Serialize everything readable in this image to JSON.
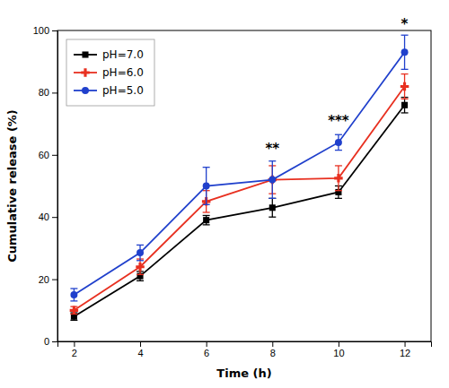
{
  "chart_data": {
    "type": "line",
    "x": [
      2,
      4,
      6,
      8,
      10,
      12
    ],
    "series": [
      {
        "name": "pH=7.0",
        "color": "#000000",
        "marker": "square",
        "values": [
          8.0,
          21.0,
          39.0,
          43.0,
          48.0,
          76.0
        ],
        "errors": [
          1.2,
          1.5,
          1.5,
          3.0,
          2.0,
          2.5
        ]
      },
      {
        "name": "pH=6.0",
        "color": "#e83020",
        "marker": "plus",
        "values": [
          10.0,
          24.0,
          45.0,
          52.0,
          52.5,
          82.0
        ],
        "errors": [
          1.2,
          2.5,
          3.5,
          4.5,
          4.0,
          4.0
        ]
      },
      {
        "name": "pH=5.0",
        "color": "#2040cc",
        "marker": "circle",
        "values": [
          15.0,
          28.5,
          50.0,
          52.0,
          64.0,
          93.0
        ],
        "errors": [
          2.0,
          2.5,
          6.0,
          6.0,
          2.5,
          5.5
        ]
      }
    ],
    "xlabel": "Time (h)",
    "ylabel": "Cumulative release (%)",
    "xlim": [
      1.5,
      12.8
    ],
    "ylim": [
      0,
      100
    ],
    "xticks": [
      2,
      4,
      6,
      8,
      10,
      12
    ],
    "yticks": [
      0,
      20,
      40,
      60,
      80,
      100
    ],
    "grid": false,
    "legend": "upper left",
    "annotations": [
      {
        "text": "**",
        "x": 8,
        "y": 60
      },
      {
        "text": "***",
        "x": 10,
        "y": 69
      },
      {
        "text": "*",
        "x": 12,
        "y": 100
      }
    ]
  }
}
